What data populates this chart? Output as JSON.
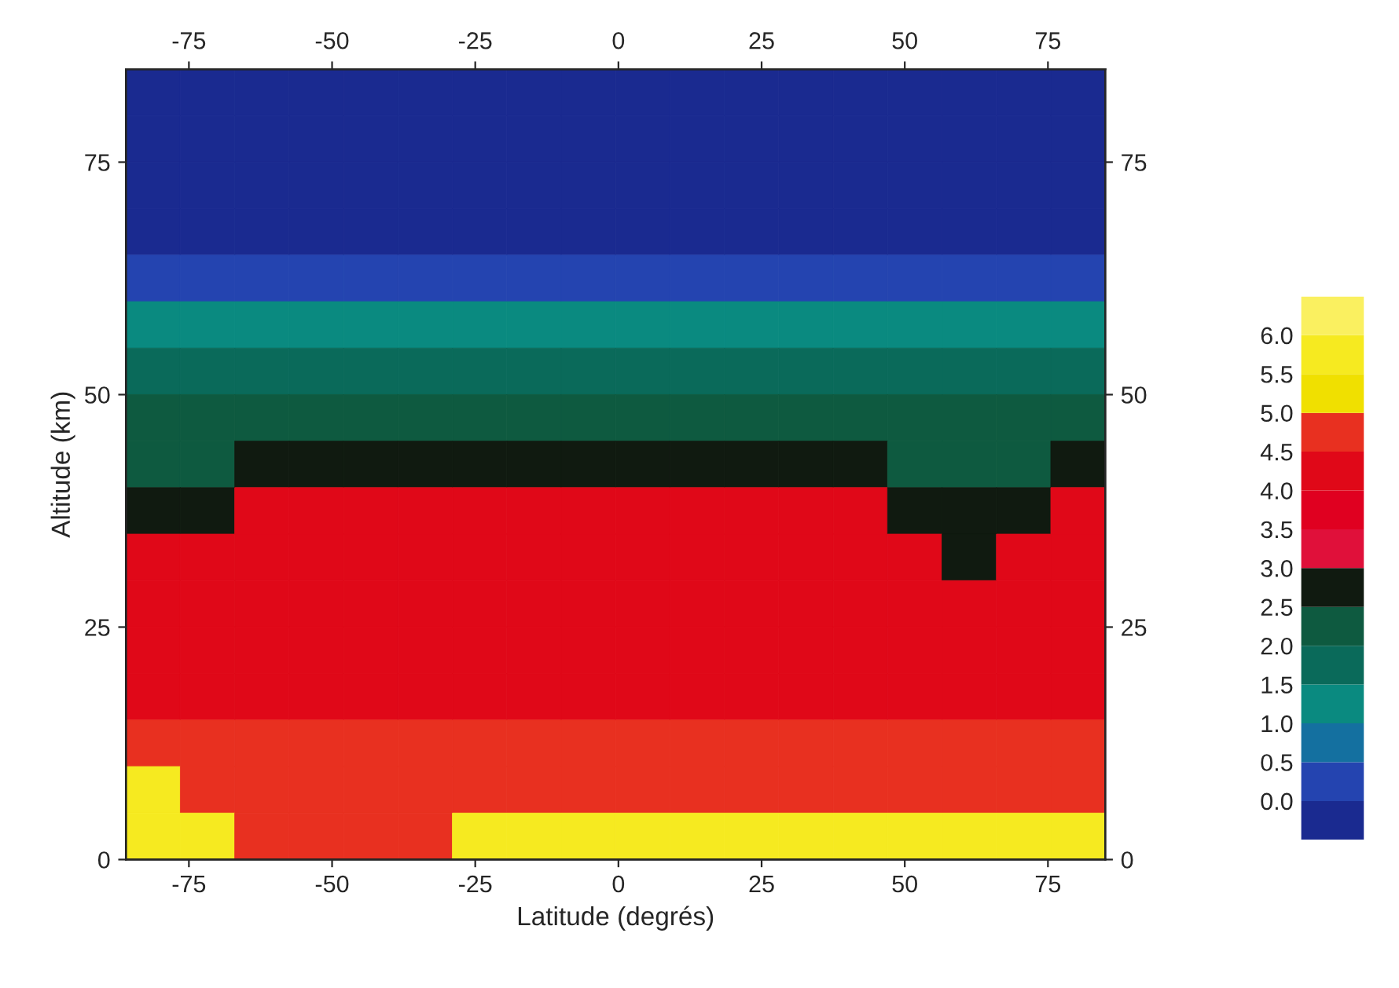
{
  "chart_data": {
    "type": "heatmap",
    "xlabel": "Latitude (degrés)",
    "ylabel": "Altitude (km)",
    "x": [
      -81.25,
      -71.75,
      -62.25,
      -52.75,
      -43.25,
      -33.75,
      -24.25,
      -14.75,
      -5.25,
      4.25,
      13.75,
      23.25,
      32.75,
      42.25,
      51.75,
      61.25,
      70.75,
      80.25
    ],
    "y": [
      82.5,
      77.5,
      72.5,
      67.5,
      62.5,
      57.5,
      52.5,
      47.5,
      42.5,
      37.5,
      32.5,
      27.5,
      22.5,
      17.5,
      12.5,
      7.5,
      2.5
    ],
    "cells": [
      [
        -0.25,
        -0.25,
        -0.25,
        -0.25,
        -0.25,
        -0.25,
        -0.25,
        -0.25,
        -0.25,
        -0.25,
        -0.25,
        -0.25,
        -0.25,
        -0.25,
        -0.25,
        -0.25,
        -0.25,
        -0.25
      ],
      [
        -0.25,
        -0.25,
        -0.25,
        -0.25,
        -0.25,
        -0.25,
        -0.25,
        -0.25,
        -0.25,
        -0.25,
        -0.25,
        -0.25,
        -0.25,
        -0.25,
        -0.25,
        -0.25,
        -0.25,
        -0.25
      ],
      [
        -0.25,
        -0.25,
        -0.25,
        -0.25,
        -0.25,
        -0.25,
        -0.25,
        -0.25,
        -0.25,
        -0.25,
        -0.25,
        -0.25,
        -0.25,
        -0.25,
        -0.25,
        -0.25,
        -0.25,
        -0.25
      ],
      [
        -0.25,
        -0.25,
        -0.25,
        -0.25,
        -0.25,
        -0.25,
        -0.25,
        -0.25,
        -0.25,
        -0.25,
        -0.25,
        -0.25,
        -0.25,
        -0.25,
        -0.25,
        -0.25,
        -0.25,
        -0.25
      ],
      [
        0.25,
        0.25,
        0.25,
        0.25,
        0.25,
        0.25,
        0.25,
        0.25,
        0.25,
        0.25,
        0.25,
        0.25,
        0.25,
        0.25,
        0.25,
        0.25,
        0.25,
        0.25
      ],
      [
        1.25,
        1.25,
        1.25,
        1.25,
        1.25,
        1.25,
        1.25,
        1.25,
        1.25,
        1.25,
        1.25,
        1.25,
        1.25,
        1.25,
        1.25,
        1.25,
        1.25,
        1.25
      ],
      [
        1.75,
        1.75,
        1.75,
        1.75,
        1.75,
        1.75,
        1.75,
        1.75,
        1.75,
        1.75,
        1.75,
        1.75,
        1.75,
        1.75,
        1.75,
        1.75,
        1.75,
        1.75
      ],
      [
        2.25,
        2.25,
        2.25,
        2.25,
        2.25,
        2.25,
        2.25,
        2.25,
        2.25,
        2.25,
        2.25,
        2.25,
        2.25,
        2.25,
        2.25,
        2.25,
        2.25,
        2.25
      ],
      [
        2.25,
        2.25,
        2.75,
        2.75,
        2.75,
        2.75,
        2.75,
        2.75,
        2.75,
        2.75,
        2.75,
        2.75,
        2.75,
        2.75,
        2.25,
        2.25,
        2.25,
        2.75
      ],
      [
        2.75,
        2.75,
        4.25,
        4.25,
        4.25,
        4.25,
        4.25,
        4.25,
        4.25,
        4.25,
        4.25,
        4.25,
        4.25,
        4.25,
        2.75,
        2.75,
        2.75,
        4.25
      ],
      [
        4.25,
        4.25,
        4.25,
        4.25,
        4.25,
        4.25,
        4.25,
        4.25,
        4.25,
        4.25,
        4.25,
        4.25,
        4.25,
        4.25,
        4.25,
        2.75,
        4.25,
        4.25
      ],
      [
        4.25,
        4.25,
        4.25,
        4.25,
        4.25,
        4.25,
        4.25,
        4.25,
        4.25,
        4.25,
        4.25,
        4.25,
        4.25,
        4.25,
        4.25,
        4.25,
        4.25,
        4.25
      ],
      [
        4.25,
        4.25,
        4.25,
        4.25,
        4.25,
        4.25,
        4.25,
        4.25,
        4.25,
        4.25,
        4.25,
        4.25,
        4.25,
        4.25,
        4.25,
        4.25,
        4.25,
        4.25
      ],
      [
        4.25,
        4.25,
        4.25,
        4.25,
        4.25,
        4.25,
        4.25,
        4.25,
        4.25,
        4.25,
        4.25,
        4.25,
        4.25,
        4.25,
        4.25,
        4.25,
        4.25,
        4.25
      ],
      [
        4.75,
        4.75,
        4.75,
        4.75,
        4.75,
        4.75,
        4.75,
        4.75,
        4.75,
        4.75,
        4.75,
        4.75,
        4.75,
        4.75,
        4.75,
        4.75,
        4.75,
        4.75
      ],
      [
        5.75,
        4.75,
        4.75,
        4.75,
        4.75,
        4.75,
        4.75,
        4.75,
        4.75,
        4.75,
        4.75,
        4.75,
        4.75,
        4.75,
        4.75,
        4.75,
        4.75,
        4.75
      ],
      [
        5.75,
        5.75,
        4.75,
        4.75,
        4.75,
        4.75,
        5.75,
        5.75,
        5.75,
        5.75,
        5.75,
        5.75,
        5.75,
        5.75,
        5.75,
        5.75,
        5.75,
        5.75
      ]
    ],
    "colors": [
      "#1a2a90",
      "#2444b0",
      "#1470a0",
      "#0a8a80",
      "#0a6a5a",
      "#0e5a40",
      "#101a10",
      "#e0103a",
      "#e00020",
      "#e00818",
      "#e83020",
      "#f0e000",
      "#f6ea20",
      "#faf060"
    ],
    "clim": [
      -0.5,
      6.5
    ],
    "cticks": [
      {
        "value": 0,
        "label": "0.0"
      },
      {
        "value": 0.5,
        "label": "0.5"
      },
      {
        "value": 1,
        "label": "1.0"
      },
      {
        "value": 1.5,
        "label": "1.5"
      },
      {
        "value": 2,
        "label": "2.0"
      },
      {
        "value": 2.5,
        "label": "2.5"
      },
      {
        "value": 3,
        "label": "3.0"
      },
      {
        "value": 3.5,
        "label": "3.5"
      },
      {
        "value": 4,
        "label": "4.0"
      },
      {
        "value": 4.5,
        "label": "4.5"
      },
      {
        "value": 5,
        "label": "5.0"
      },
      {
        "value": 5.5,
        "label": "5.5"
      },
      {
        "value": 6,
        "label": "6.0"
      }
    ],
    "xlim": [
      -86,
      85
    ],
    "xticks": [
      -75,
      -50,
      -25,
      0,
      25,
      50,
      75
    ],
    "ylim": [
      0,
      85
    ],
    "yticks": [
      0,
      25,
      50,
      75
    ],
    "x2lim": [
      -86,
      85
    ],
    "x2ticks": [
      -75,
      -50,
      -25,
      0,
      25,
      50,
      75
    ],
    "y2lim": [
      0,
      85
    ],
    "y2ticks": [
      0,
      25,
      50,
      75
    ]
  }
}
